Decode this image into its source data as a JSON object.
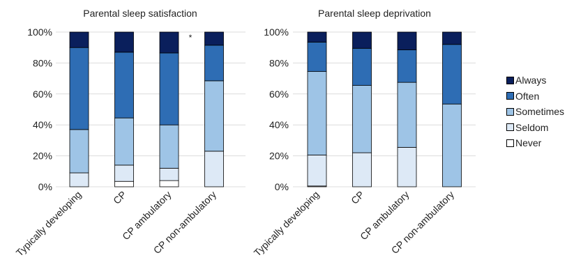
{
  "chart_data": [
    {
      "type": "bar",
      "stacked": true,
      "title": "Parental sleep satisfaction",
      "annotation": "*",
      "categories": [
        "Typically developing",
        "CP",
        "CP ambulatory",
        "CP non-ambulatory"
      ],
      "ylim": [
        0,
        100
      ],
      "yticks": [
        "0%",
        "20%",
        "40%",
        "60%",
        "80%",
        "100%"
      ],
      "grid": true,
      "series": [
        {
          "name": "Never",
          "values": [
            0,
            3.5,
            4,
            0
          ]
        },
        {
          "name": "Seldom",
          "values": [
            9,
            10.5,
            8,
            23
          ]
        },
        {
          "name": "Sometimes",
          "values": [
            28,
            30.5,
            28,
            45.5
          ]
        },
        {
          "name": "Often",
          "values": [
            53,
            42.5,
            46.5,
            23
          ]
        },
        {
          "name": "Always",
          "values": [
            10,
            13,
            13.5,
            8.5
          ]
        }
      ]
    },
    {
      "type": "bar",
      "stacked": true,
      "title": "Parental sleep deprivation",
      "categories": [
        "Typically developing",
        "CP",
        "CP ambulatory",
        "CP non-ambulatory"
      ],
      "ylim": [
        0,
        100
      ],
      "yticks": [
        "0%",
        "20%",
        "40%",
        "60%",
        "80%",
        "100%"
      ],
      "grid": true,
      "series": [
        {
          "name": "Never",
          "values": [
            0.5,
            0,
            0,
            0
          ]
        },
        {
          "name": "Seldom",
          "values": [
            20,
            22,
            25.5,
            0
          ]
        },
        {
          "name": "Sometimes",
          "values": [
            54,
            43.5,
            42,
            53.5
          ]
        },
        {
          "name": "Often",
          "values": [
            19,
            24,
            21,
            38.5
          ]
        },
        {
          "name": "Always",
          "values": [
            6.5,
            10.5,
            11.5,
            8
          ]
        }
      ]
    }
  ],
  "legend": {
    "placement": "right",
    "items": [
      {
        "label": "Always",
        "color": "#0a1f5c"
      },
      {
        "label": "Often",
        "color": "#2e6db4"
      },
      {
        "label": "Sometimes",
        "color": "#9ec4e6"
      },
      {
        "label": "Seldom",
        "color": "#dde9f6"
      },
      {
        "label": "Never",
        "color": "#ffffff"
      }
    ]
  },
  "series_colors": {
    "Never": "#ffffff",
    "Seldom": "#dde9f6",
    "Sometimes": "#9ec4e6",
    "Often": "#2e6db4",
    "Always": "#0a1f5c"
  }
}
